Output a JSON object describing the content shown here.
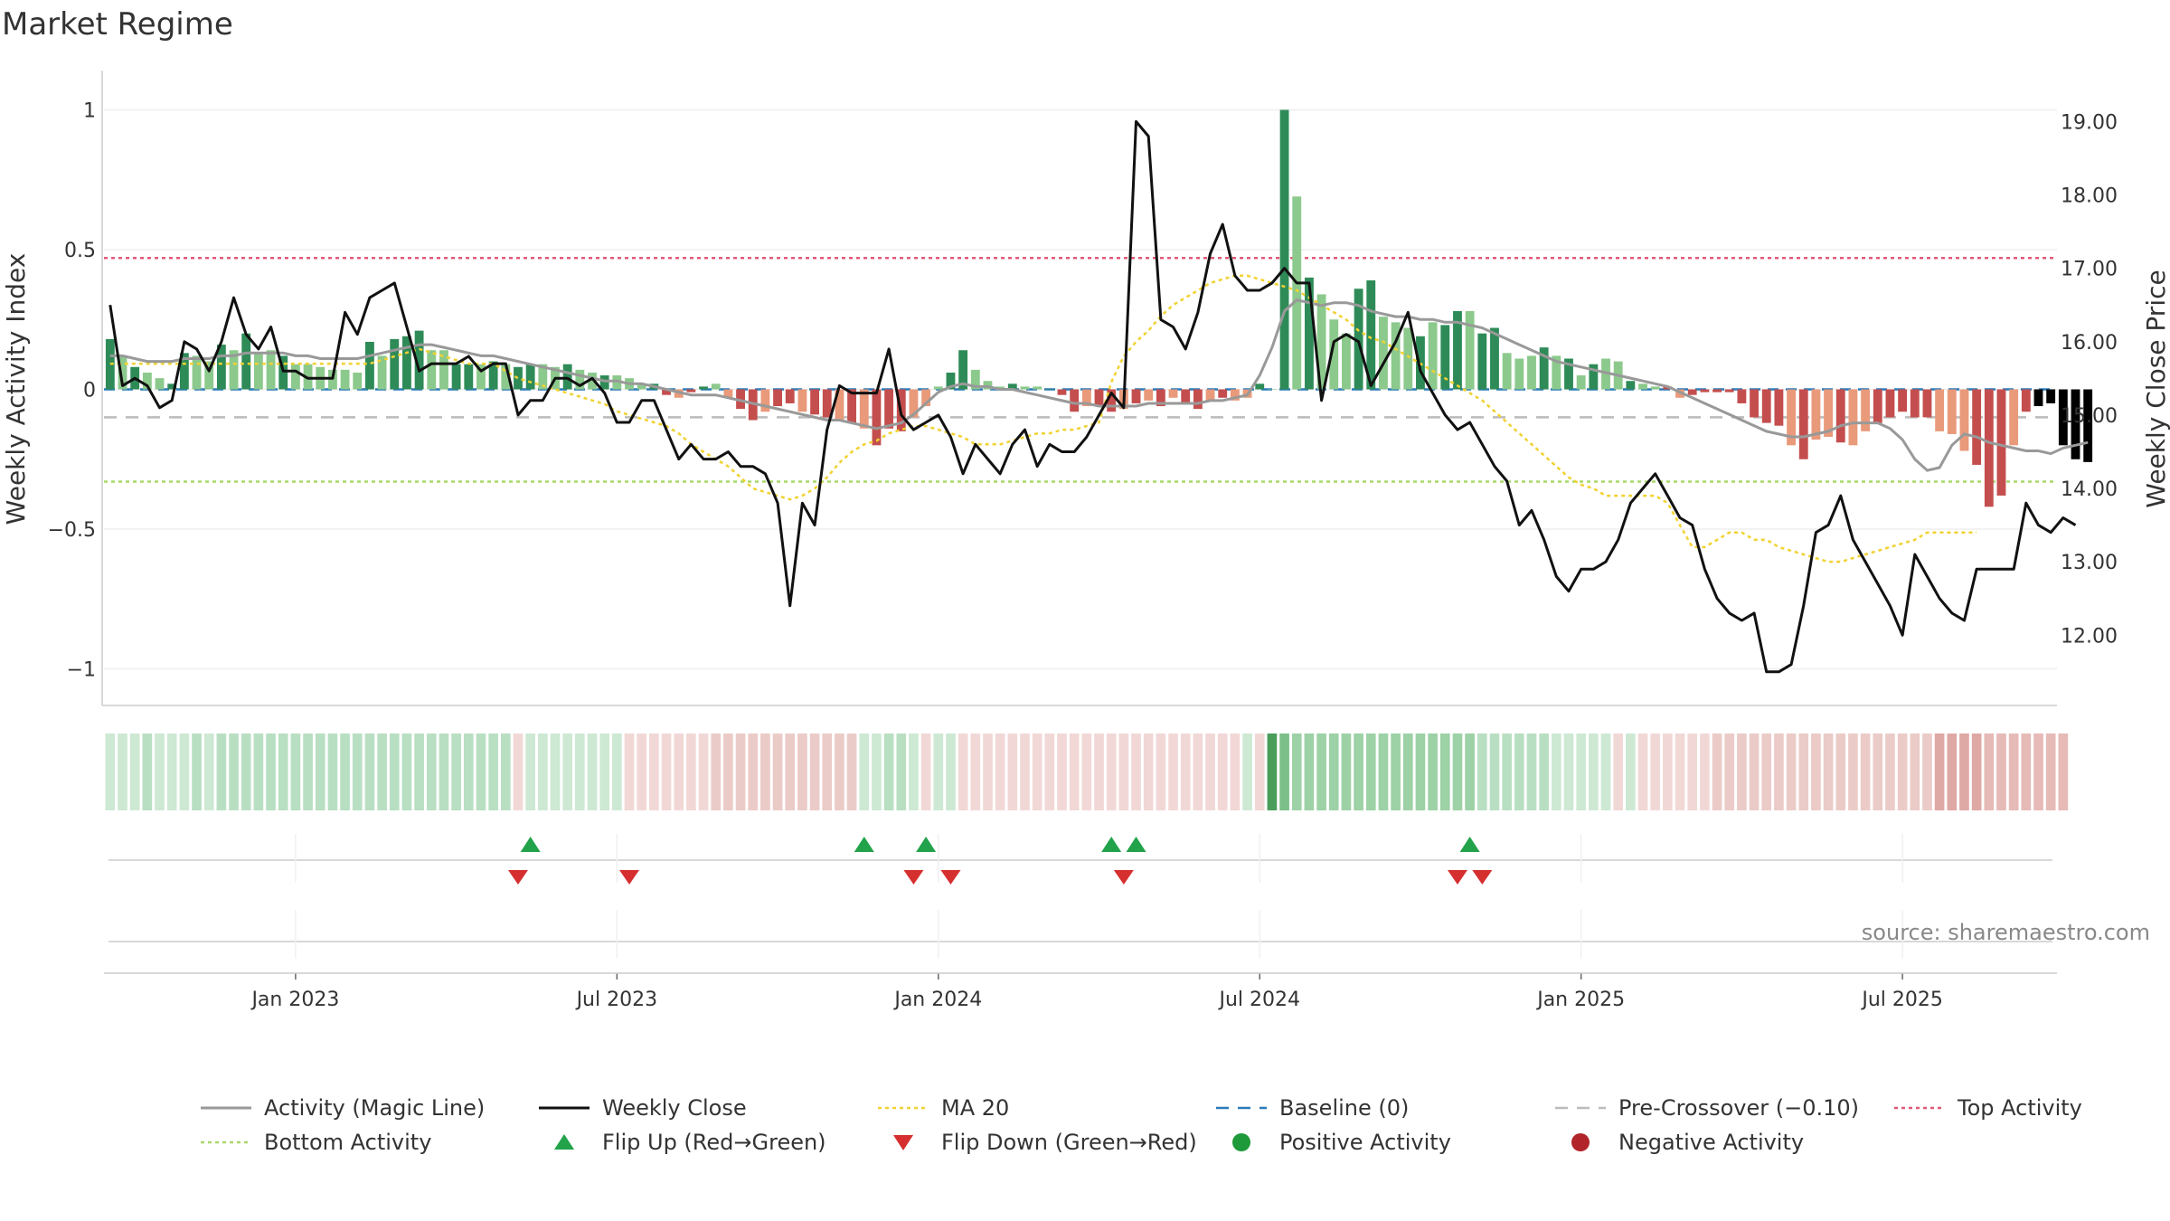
{
  "chart_data": {
    "type": "bar",
    "title": "Market Regime",
    "ylabel": "Weekly Activity Index",
    "y2label": "Weekly Close Price",
    "ylim": [
      -1.05,
      1.05
    ],
    "y2lim": [
      11.35,
      19.35
    ],
    "yticks": [
      {
        "v": 1,
        "t": "1"
      },
      {
        "v": 0.5,
        "t": "0.5"
      },
      {
        "v": 0,
        "t": "0"
      },
      {
        "v": -0.5,
        "t": "−0.5"
      },
      {
        "v": -1,
        "t": "−1"
      }
    ],
    "y2ticks": [
      "19.00",
      "18.00",
      "17.00",
      "16.00",
      "15.00",
      "14.00",
      "13.00",
      "12.00"
    ],
    "xticks": [
      {
        "label": "Jan 2023",
        "week": 15
      },
      {
        "label": "Jul 2023",
        "week": 41
      },
      {
        "label": "Jan 2024",
        "week": 67
      },
      {
        "label": "Jul 2024",
        "week": 93
      },
      {
        "label": "Jan 2025",
        "week": 119
      },
      {
        "label": "Jul 2025",
        "week": 145
      }
    ],
    "weeks": 158,
    "activity": [
      0.18,
      0.12,
      0.08,
      0.06,
      0.04,
      0.02,
      0.13,
      0.12,
      0.1,
      0.16,
      0.14,
      0.2,
      0.13,
      0.14,
      0.12,
      0.09,
      0.09,
      0.08,
      0.07,
      0.07,
      0.06,
      0.17,
      0.12,
      0.18,
      0.19,
      0.21,
      0.14,
      0.14,
      0.09,
      0.09,
      0.09,
      0.1,
      0.09,
      0.08,
      0.09,
      0.09,
      0.08,
      0.09,
      0.07,
      0.06,
      0.05,
      0.05,
      0.04,
      0.02,
      0.02,
      -0.02,
      -0.03,
      -0.01,
      0.01,
      0.02,
      -0.03,
      -0.07,
      -0.11,
      -0.08,
      -0.06,
      -0.05,
      -0.08,
      -0.09,
      -0.1,
      -0.11,
      -0.12,
      -0.14,
      -0.2,
      -0.14,
      -0.15,
      -0.1,
      -0.06,
      0.01,
      0.06,
      0.14,
      0.07,
      0.03,
      0.01,
      0.02,
      0.01,
      0.01,
      0.0,
      -0.02,
      -0.08,
      -0.06,
      -0.06,
      -0.08,
      -0.07,
      -0.05,
      -0.04,
      -0.06,
      -0.03,
      -0.05,
      -0.07,
      -0.04,
      -0.03,
      -0.04,
      -0.03,
      0.02,
      0.0,
      1.0,
      0.69,
      0.4,
      0.34,
      0.25,
      0.2,
      0.36,
      0.39,
      0.26,
      0.24,
      0.22,
      0.19,
      0.24,
      0.23,
      0.28,
      0.28,
      0.2,
      0.22,
      0.13,
      0.11,
      0.12,
      0.15,
      0.12,
      0.11,
      0.05,
      0.09,
      0.11,
      0.1,
      0.03,
      0.02,
      0.01,
      0.01,
      -0.03,
      -0.02,
      -0.01,
      -0.01,
      -0.01,
      -0.05,
      -0.1,
      -0.12,
      -0.13,
      -0.2,
      -0.25,
      -0.18,
      -0.17,
      -0.19,
      -0.2,
      -0.15,
      -0.12,
      -0.1,
      -0.08,
      -0.1,
      -0.1,
      -0.15,
      -0.16,
      -0.22,
      -0.27,
      -0.42,
      -0.38,
      -0.2,
      -0.08,
      -0.06,
      -0.05,
      -0.2,
      -0.25,
      -0.26
    ],
    "activity_colors": [
      "#2e8b57",
      "#8cc98c",
      "#2e8b57",
      "#8cc98c",
      "#8cc98c",
      "#2e8b57",
      "#2e8b57",
      "#8cc98c",
      "#8cc98c",
      "#2e8b57",
      "#8cc98c",
      "#2e8b57",
      "#8cc98c",
      "#8cc98c",
      "#2e8b57",
      "#8cc98c",
      "#8cc98c",
      "#8cc98c",
      "#8cc98c",
      "#8cc98c",
      "#8cc98c",
      "#2e8b57",
      "#8cc98c",
      "#2e8b57",
      "#2e8b57",
      "#2e8b57",
      "#8cc98c",
      "#8cc98c",
      "#2e8b57",
      "#2e8b57",
      "#8cc98c",
      "#2e8b57",
      "#8cc98c",
      "#2e8b57",
      "#2e8b57",
      "#8cc98c",
      "#8cc98c",
      "#2e8b57",
      "#8cc98c",
      "#8cc98c",
      "#2e8b57",
      "#8cc98c",
      "#8cc98c",
      "#8cc98c",
      "#2e8b57",
      "#c44e4e",
      "#e89a7a",
      "#c44e4e",
      "#2e8b57",
      "#8cc98c",
      "#e89a7a",
      "#c44e4e",
      "#c44e4e",
      "#e89a7a",
      "#c44e4e",
      "#c44e4e",
      "#e89a7a",
      "#c44e4e",
      "#c44e4e",
      "#e89a7a",
      "#c44e4e",
      "#e89a7a",
      "#c44e4e",
      "#c44e4e",
      "#c44e4e",
      "#e89a7a",
      "#e89a7a",
      "#8cc98c",
      "#2e8b57",
      "#2e8b57",
      "#8cc98c",
      "#8cc98c",
      "#8cc98c",
      "#2e8b57",
      "#8cc98c",
      "#8cc98c",
      "#2e8b57",
      "#c44e4e",
      "#c44e4e",
      "#e89a7a",
      "#c44e4e",
      "#c44e4e",
      "#e89a7a",
      "#c44e4e",
      "#e89a7a",
      "#c44e4e",
      "#e89a7a",
      "#c44e4e",
      "#c44e4e",
      "#e89a7a",
      "#c44e4e",
      "#e89a7a",
      "#e89a7a",
      "#2e8b57",
      "#8cc98c",
      "#2e8b57",
      "#8cc98c",
      "#2e8b57",
      "#8cc98c",
      "#8cc98c",
      "#8cc98c",
      "#2e8b57",
      "#2e8b57",
      "#8cc98c",
      "#8cc98c",
      "#8cc98c",
      "#2e8b57",
      "#8cc98c",
      "#2e8b57",
      "#2e8b57",
      "#8cc98c",
      "#2e8b57",
      "#2e8b57",
      "#8cc98c",
      "#8cc98c",
      "#8cc98c",
      "#2e8b57",
      "#8cc98c",
      "#2e8b57",
      "#8cc98c",
      "#2e8b57",
      "#8cc98c",
      "#8cc98c",
      "#2e8b57",
      "#8cc98c",
      "#8cc98c",
      "#c44e4e",
      "#e89a7a",
      "#c44e4e",
      "#c44e4e",
      "#c44e4e",
      "#c44e4e",
      "#c44e4e",
      "#c44e4e",
      "#c44e4e",
      "#c44e4e",
      "#e89a7a",
      "#c44e4e",
      "#e89a7a",
      "#e89a7a",
      "#c44e4e",
      "#e89a7a",
      "#e89a7a",
      "#c44e4e",
      "#c44e4e",
      "#c44e4e",
      "#c44e4e",
      "#c44e4e",
      "#e89a7a",
      "#e89a7a",
      "#e89a7a",
      "#c44e4e",
      "#c44e4e",
      "#c44e4e",
      "#e89a7a",
      "#c44e4e"
    ],
    "close": [
      16.5,
      15.4,
      15.5,
      15.4,
      15.1,
      15.2,
      16.0,
      15.9,
      15.6,
      16.0,
      16.6,
      16.1,
      15.9,
      16.2,
      15.6,
      15.6,
      15.5,
      15.5,
      15.5,
      16.4,
      16.1,
      16.6,
      16.7,
      16.8,
      16.2,
      15.6,
      15.7,
      15.7,
      15.7,
      15.8,
      15.6,
      15.7,
      15.7,
      15.0,
      15.2,
      15.2,
      15.5,
      15.5,
      15.4,
      15.5,
      15.3,
      14.9,
      14.9,
      15.2,
      15.2,
      14.8,
      14.4,
      14.6,
      14.4,
      14.4,
      14.5,
      14.3,
      14.3,
      14.2,
      13.8,
      12.4,
      13.8,
      13.5,
      14.8,
      15.4,
      15.3,
      15.3,
      15.3,
      15.9,
      15.0,
      14.8,
      14.9,
      15.0,
      14.7,
      14.2,
      14.6,
      14.4,
      14.2,
      14.6,
      14.8,
      14.3,
      14.6,
      14.5,
      14.5,
      14.7,
      15.0,
      15.3,
      15.1,
      19.0,
      18.8,
      16.3,
      16.2,
      15.9,
      16.4,
      17.2,
      17.6,
      16.9,
      16.7,
      16.7,
      16.8,
      17.0,
      16.8,
      16.8,
      15.2,
      16.0,
      16.1,
      16.0,
      15.4,
      15.7,
      16.0,
      16.4,
      15.6,
      15.3,
      15.0,
      14.8,
      14.9,
      14.6,
      14.3,
      14.1,
      13.5,
      13.7,
      13.3,
      12.8,
      12.6,
      12.9,
      12.9,
      13.0,
      13.3,
      13.8,
      14.0,
      14.2,
      13.9,
      13.6,
      13.5,
      12.9,
      12.5,
      12.3,
      12.2,
      12.3,
      11.5,
      11.5,
      11.6,
      12.4,
      13.4,
      13.5,
      13.9,
      13.3,
      13.0,
      12.7,
      12.4,
      12.0,
      13.1,
      12.8,
      12.5,
      12.3,
      12.2,
      12.9,
      12.9,
      12.9,
      12.9,
      13.8,
      13.5,
      13.4,
      13.6,
      13.5
    ],
    "magic_line": [
      0.12,
      0.12,
      0.11,
      0.1,
      0.1,
      0.1,
      0.11,
      0.11,
      0.11,
      0.12,
      0.12,
      0.13,
      0.13,
      0.13,
      0.13,
      0.12,
      0.12,
      0.11,
      0.11,
      0.11,
      0.11,
      0.12,
      0.13,
      0.14,
      0.15,
      0.16,
      0.16,
      0.15,
      0.14,
      0.13,
      0.12,
      0.12,
      0.11,
      0.1,
      0.09,
      0.08,
      0.07,
      0.06,
      0.05,
      0.04,
      0.03,
      0.03,
      0.02,
      0.02,
      0.01,
      0.0,
      -0.01,
      -0.02,
      -0.02,
      -0.02,
      -0.03,
      -0.04,
      -0.05,
      -0.06,
      -0.07,
      -0.08,
      -0.09,
      -0.1,
      -0.11,
      -0.11,
      -0.12,
      -0.13,
      -0.14,
      -0.13,
      -0.12,
      -0.09,
      -0.05,
      -0.01,
      0.01,
      0.02,
      0.01,
      0.01,
      0.0,
      0.0,
      -0.01,
      -0.02,
      -0.03,
      -0.04,
      -0.05,
      -0.05,
      -0.06,
      -0.06,
      -0.06,
      -0.06,
      -0.05,
      -0.05,
      -0.05,
      -0.05,
      -0.05,
      -0.04,
      -0.04,
      -0.03,
      -0.02,
      0.05,
      0.15,
      0.28,
      0.32,
      0.31,
      0.3,
      0.31,
      0.31,
      0.3,
      0.28,
      0.27,
      0.26,
      0.26,
      0.25,
      0.25,
      0.24,
      0.24,
      0.23,
      0.22,
      0.2,
      0.18,
      0.16,
      0.14,
      0.12,
      0.1,
      0.09,
      0.08,
      0.07,
      0.06,
      0.05,
      0.04,
      0.03,
      0.02,
      0.01,
      -0.01,
      -0.03,
      -0.05,
      -0.07,
      -0.09,
      -0.11,
      -0.13,
      -0.15,
      -0.16,
      -0.17,
      -0.17,
      -0.16,
      -0.15,
      -0.13,
      -0.12,
      -0.12,
      -0.12,
      -0.14,
      -0.18,
      -0.25,
      -0.29,
      -0.28,
      -0.2,
      -0.16,
      -0.17,
      -0.19,
      -0.2,
      -0.21,
      -0.22,
      -0.22,
      -0.23,
      -0.21,
      -0.2,
      -0.19
    ],
    "ma20": [
      15.7,
      15.7,
      15.7,
      15.7,
      15.7,
      15.7,
      15.7,
      15.7,
      15.7,
      15.7,
      15.7,
      15.7,
      15.7,
      15.7,
      15.7,
      15.7,
      15.7,
      15.7,
      15.7,
      15.7,
      15.7,
      15.7,
      15.75,
      15.8,
      15.85,
      15.9,
      15.85,
      15.8,
      15.75,
      15.7,
      15.7,
      15.7,
      15.6,
      15.5,
      15.45,
      15.4,
      15.35,
      15.3,
      15.25,
      15.2,
      15.15,
      15.05,
      15.0,
      14.95,
      14.9,
      14.85,
      14.75,
      14.6,
      14.5,
      14.4,
      14.3,
      14.15,
      14.0,
      13.95,
      13.9,
      13.85,
      13.9,
      14.0,
      14.15,
      14.35,
      14.5,
      14.6,
      14.65,
      14.75,
      14.8,
      14.85,
      14.85,
      14.8,
      14.75,
      14.7,
      14.6,
      14.6,
      14.6,
      14.65,
      14.7,
      14.75,
      14.75,
      14.8,
      14.8,
      14.85,
      14.9,
      15.45,
      15.8,
      16.0,
      16.15,
      16.35,
      16.5,
      16.6,
      16.7,
      16.8,
      16.85,
      16.9,
      16.9,
      16.85,
      16.8,
      16.75,
      16.7,
      16.6,
      16.5,
      16.4,
      16.3,
      16.15,
      16.05,
      16.0,
      15.9,
      15.8,
      15.7,
      15.6,
      15.5,
      15.4,
      15.3,
      15.2,
      15.05,
      14.9,
      14.75,
      14.6,
      14.45,
      14.3,
      14.15,
      14.05,
      14.0,
      13.9,
      13.9,
      13.9,
      13.9,
      13.9,
      13.8,
      13.5,
      13.2,
      13.2,
      13.3,
      13.4,
      13.4,
      13.3,
      13.3,
      13.2,
      13.15,
      13.1,
      13.05,
      13.0,
      13.0,
      13.05,
      13.1,
      13.15,
      13.2,
      13.25,
      13.3,
      13.4,
      13.4,
      13.4,
      13.4,
      13.4
    ],
    "baseline": 0,
    "pre_crossover": -0.1,
    "top_activity": 0.47,
    "bottom_activity": -0.33,
    "regime_colors": [
      "#cde8d3",
      "#cde8d3",
      "#cde8d3",
      "#b9dfc3",
      "#cde8d3",
      "#cde8d3",
      "#cde8d3",
      "#b9dfc3",
      "#cde8d3",
      "#b9dfc3",
      "#b9dfc3",
      "#b9dfc3",
      "#b9dfc3",
      "#b9dfc3",
      "#b9dfc3",
      "#b9dfc3",
      "#b9dfc3",
      "#b9dfc3",
      "#b9dfc3",
      "#b9dfc3",
      "#b9dfc3",
      "#b9dfc3",
      "#b9dfc3",
      "#b9dfc3",
      "#b9dfc3",
      "#b9dfc3",
      "#b9dfc3",
      "#b9dfc3",
      "#b9dfc3",
      "#b9dfc3",
      "#b9dfc3",
      "#b9dfc3",
      "#b9dfc3",
      "#f1d8d6",
      "#cde8d3",
      "#cde8d3",
      "#cde8d3",
      "#cde8d3",
      "#cde8d3",
      "#cde8d3",
      "#cde8d3",
      "#cde8d3",
      "#f1d8d6",
      "#f1d8d6",
      "#f1d8d6",
      "#f1d8d6",
      "#f1d8d6",
      "#f1d8d6",
      "#f1d8d6",
      "#ebcbc8",
      "#ebcbc8",
      "#ebcbc8",
      "#ebcbc8",
      "#ebcbc8",
      "#ebcbc8",
      "#ebcbc8",
      "#ebcbc8",
      "#ebcbc8",
      "#ebcbc8",
      "#ebcbc8",
      "#ebcbc8",
      "#cde8d3",
      "#cde8d3",
      "#b9dfc3",
      "#b9dfc3",
      "#cde8d3",
      "#f1d8d6",
      "#cde8d3",
      "#cde8d3",
      "#f1d8d6",
      "#f1d8d6",
      "#f1d8d6",
      "#f1d8d6",
      "#f1d8d6",
      "#f1d8d6",
      "#f1d8d6",
      "#f1d8d6",
      "#f1d8d6",
      "#f1d8d6",
      "#f1d8d6",
      "#f1d8d6",
      "#f1d8d6",
      "#f1d8d6",
      "#f1d8d6",
      "#f1d8d6",
      "#f1d8d6",
      "#f1d8d6",
      "#f1d8d6",
      "#f1d8d6",
      "#f1d8d6",
      "#f1d8d6",
      "#f1d8d6",
      "#cde8d3",
      "#f1d8d6",
      "#4a9d5a",
      "#7cbf88",
      "#9dd1a6",
      "#9dd1a6",
      "#9dd1a6",
      "#9dd1a6",
      "#9dd1a6",
      "#9dd1a6",
      "#9dd1a6",
      "#9dd1a6",
      "#9dd1a6",
      "#9dd1a6",
      "#9dd1a6",
      "#9dd1a6",
      "#9dd1a6",
      "#9dd1a6",
      "#9dd1a6",
      "#b9dfc3",
      "#b9dfc3",
      "#b9dfc3",
      "#b9dfc3",
      "#b9dfc3",
      "#b9dfc3",
      "#cde8d3",
      "#cde8d3",
      "#cde8d3",
      "#cde8d3",
      "#cde8d3",
      "#f1d8d6",
      "#cde8d3",
      "#f1d8d6",
      "#f1d8d6",
      "#f1d8d6",
      "#f1d8d6",
      "#f1d8d6",
      "#f1d8d6",
      "#ebcbc8",
      "#ebcbc8",
      "#ebcbc8",
      "#ebcbc8",
      "#ebcbc8",
      "#ebcbc8",
      "#ebcbc8",
      "#ebcbc8",
      "#ebcbc8",
      "#ebcbc8",
      "#ebcbc8",
      "#ebcbc8",
      "#ebcbc8",
      "#ebcbc8",
      "#ebcbc8",
      "#ebcbc8",
      "#ebcbc8",
      "#ebcbc8",
      "#dea8a4",
      "#dea8a4",
      "#dea8a4",
      "#dea8a4",
      "#e6bab6",
      "#e6bab6",
      "#e6bab6",
      "#e6bab6",
      "#e6bab6",
      "#e6bab6",
      "#e6bab6"
    ],
    "flip_up_weeks": [
      34,
      61,
      66,
      81,
      83,
      110
    ],
    "flip_down_weeks": [
      33,
      42,
      65,
      68,
      82,
      109,
      111
    ],
    "source": "source: sharemaestro.com",
    "colors": {
      "strong_green": "#2e8b57",
      "light_green": "#8cc98c",
      "strong_red": "#c44e4e",
      "light_red": "#e89a7a",
      "close_line": "#111111",
      "magic_line": "#999999",
      "ma20": "#f1d231",
      "baseline": "#2b7bba",
      "pre_crossover": "#bbbbbb",
      "top_activity": "#e05a78",
      "bottom_activity": "#a8d86a",
      "flip_up": "#22a24a",
      "flip_down": "#d62f2f",
      "positive": "#1f9a3b",
      "negative": "#b0242a"
    },
    "legend": [
      {
        "label": "Activity (Magic Line)",
        "kind": "solid",
        "color": "#999999"
      },
      {
        "label": "Weekly Close",
        "kind": "solid",
        "color": "#111111"
      },
      {
        "label": "MA 20",
        "kind": "dotted",
        "color": "#f1d231"
      },
      {
        "label": "Baseline (0)",
        "kind": "dashed",
        "color": "#2b7bba"
      },
      {
        "label": "Pre-Crossover (−0.10)",
        "kind": "dashed",
        "color": "#bbbbbb"
      },
      {
        "label": "Top Activity",
        "kind": "dotted",
        "color": "#e05a78"
      },
      {
        "label": "Bottom Activity",
        "kind": "dotted",
        "color": "#a8d86a"
      },
      {
        "label": "Flip Up (Red→Green)",
        "kind": "up",
        "color": "#22a24a"
      },
      {
        "label": "Flip Down (Green→Red)",
        "kind": "down",
        "color": "#d62f2f"
      },
      {
        "label": "Positive Activity",
        "kind": "dot",
        "color": "#1f9a3b"
      },
      {
        "label": "Negative Activity",
        "kind": "dot",
        "color": "#b0242a"
      }
    ]
  }
}
